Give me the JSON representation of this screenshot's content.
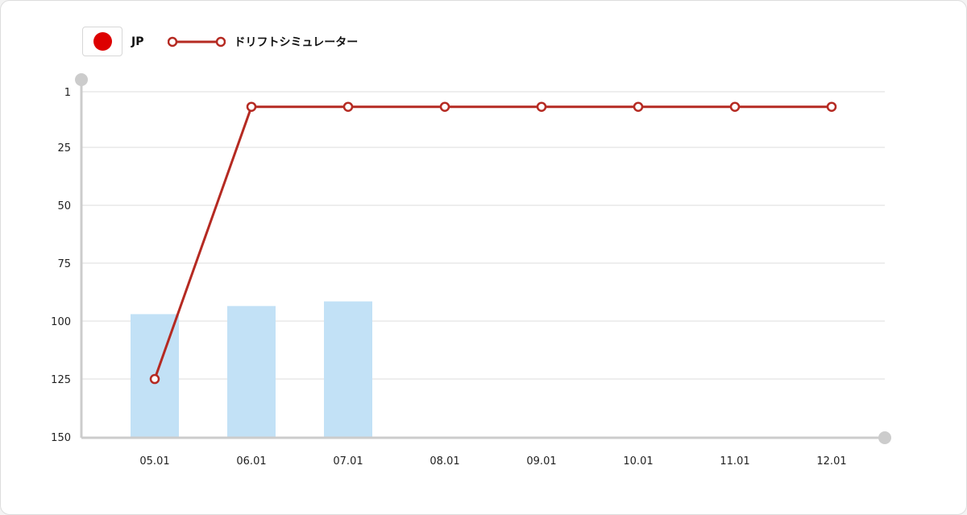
{
  "legend": {
    "country_code": "JP",
    "flag_color": "#dd0000",
    "series_label": "ドリフトシミュレーター"
  },
  "colors": {
    "line": "#b52a22",
    "bar": "#c2e1f6",
    "axis": "#cccccc",
    "grid": "#dedede"
  },
  "chart_data": {
    "type": "bar+line",
    "categories": [
      "05.01",
      "06.01",
      "07.01",
      "08.01",
      "09.01",
      "10.01",
      "11.01",
      "12.01"
    ],
    "y_axis": {
      "ticks": [
        1,
        25,
        50,
        75,
        100,
        125,
        150
      ],
      "range": [
        1,
        150
      ],
      "reversed": true
    },
    "bars": [
      97,
      93.5,
      91.5,
      null,
      null,
      null,
      null,
      null
    ],
    "series": [
      {
        "name": "ドリフトシミュレーター",
        "values": [
          125,
          7.5,
          7.5,
          7.5,
          7.5,
          7.5,
          7.5,
          7.5
        ]
      }
    ],
    "grid": true,
    "legend_position": "top-left"
  }
}
